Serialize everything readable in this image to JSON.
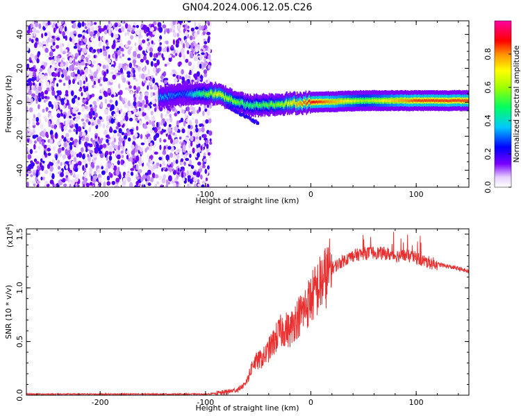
{
  "title": "GN04.2024.006.12.05.C26",
  "colors": {
    "snr_line": "#e83030",
    "axis": "#000000"
  },
  "chart_data": [
    {
      "type": "heatmap",
      "xlabel": "Height of straight line (km)",
      "ylabel": "Frequency (Hz)",
      "xlim": [
        -270,
        150
      ],
      "ylim": [
        -50,
        48
      ],
      "xticks": [
        -200,
        -100,
        0,
        100
      ],
      "yticks": [
        -40,
        -20,
        0,
        20,
        40
      ],
      "colorbar": {
        "label": "Normalized spectral amplitude",
        "range": [
          0,
          1
        ],
        "ticks": [
          "0.0",
          "0.2",
          "0.4",
          "0.6",
          "0.8"
        ],
        "colormap": "rainbow (purple → blue → cyan → green → yellow → orange → red → magenta)"
      },
      "description_points": [
        {
          "x": -140,
          "freq": 3,
          "amp": 0.35
        },
        {
          "x": -120,
          "freq": 5,
          "amp": 0.3
        },
        {
          "x": -90,
          "freq": 5,
          "amp": 0.7
        },
        {
          "x": -60,
          "freq": -2,
          "amp": 0.5
        },
        {
          "x": -30,
          "freq": -1,
          "amp": 0.6
        },
        {
          "x": 0,
          "freq": 0,
          "amp": 0.9
        },
        {
          "x": 50,
          "freq": 1,
          "amp": 0.6
        },
        {
          "x": 100,
          "freq": 1,
          "amp": 0.85
        },
        {
          "x": 150,
          "freq": 1,
          "amp": 0.85
        }
      ]
    },
    {
      "type": "line",
      "xlabel": "Height of straight line (km)",
      "ylabel": "SNR (10 * v/v)",
      "yscale_label": "(x10",
      "yscale_exp": "4",
      "yscale_close": ")",
      "xlim": [
        -270,
        150
      ],
      "ylim": [
        0,
        1.55
      ],
      "xticks": [
        -200,
        -100,
        0,
        100
      ],
      "yticks": [
        "0.0",
        "0.5",
        "1.0",
        "1.5"
      ],
      "series": [
        {
          "x": [
            -270,
            -200,
            -150,
            -100,
            -85,
            -70,
            -62,
            -58,
            -55,
            -50,
            -45,
            -40,
            -35,
            -30,
            -25,
            -20,
            -15,
            -10,
            -5,
            0,
            10,
            20,
            30,
            40,
            50,
            60,
            70,
            80,
            90,
            100,
            110,
            120,
            130,
            140,
            150
          ],
          "y": [
            0.01,
            0.01,
            0.01,
            0.01,
            0.02,
            0.05,
            0.1,
            0.2,
            0.3,
            0.32,
            0.35,
            0.42,
            0.5,
            0.58,
            0.62,
            0.6,
            0.7,
            0.75,
            0.82,
            0.9,
            1.05,
            1.18,
            1.25,
            1.3,
            1.32,
            1.33,
            1.32,
            1.3,
            1.3,
            1.28,
            1.24,
            1.22,
            1.2,
            1.18,
            1.15
          ]
        }
      ]
    }
  ]
}
